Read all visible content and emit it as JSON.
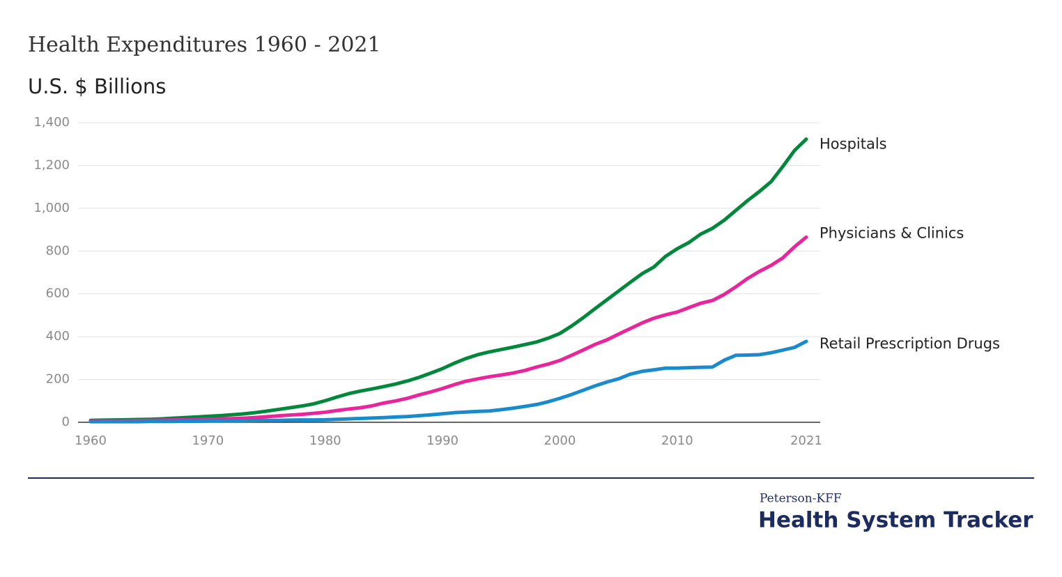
{
  "chart_data": {
    "type": "line",
    "title": "Health Expenditures 1960 - 2021",
    "subtitle": "U.S. $ Billions",
    "x": [
      1960,
      1961,
      1962,
      1963,
      1964,
      1965,
      1966,
      1967,
      1968,
      1969,
      1970,
      1971,
      1972,
      1973,
      1974,
      1975,
      1976,
      1977,
      1978,
      1979,
      1980,
      1981,
      1982,
      1983,
      1984,
      1985,
      1986,
      1987,
      1988,
      1989,
      1990,
      1991,
      1992,
      1993,
      1994,
      1995,
      1996,
      1997,
      1998,
      1999,
      2000,
      2001,
      2002,
      2003,
      2004,
      2005,
      2006,
      2007,
      2008,
      2009,
      2010,
      2011,
      2012,
      2013,
      2014,
      2015,
      2016,
      2017,
      2018,
      2019,
      2020,
      2021
    ],
    "xlim": [
      1960,
      2021
    ],
    "xticks": [
      1960,
      1970,
      1980,
      1990,
      2000,
      2010,
      2021
    ],
    "ylim": [
      0,
      1400
    ],
    "yticks": [
      0,
      200,
      400,
      600,
      800,
      {
        "value": 1000,
        "label": "1,000"
      },
      {
        "value": 1200,
        "label": "1,200"
      },
      {
        "value": 1400,
        "label": "1,400"
      }
    ],
    "grid": true,
    "series": [
      {
        "name": "Hospitals",
        "color": "#00873c",
        "values": [
          9,
          10,
          11,
          12,
          13,
          14,
          16,
          19,
          22,
          25,
          28,
          31,
          35,
          39,
          45,
          52,
          60,
          68,
          76,
          86,
          101,
          118,
          134,
          146,
          156,
          167,
          179,
          193,
          210,
          230,
          251,
          276,
          298,
          316,
          329,
          340,
          351,
          363,
          375,
          393,
          415,
          450,
          489,
          531,
          572,
          613,
          654,
          694,
          725,
          775,
          811,
          840,
          879,
          906,
          944,
          990,
          1036,
          1078,
          1124,
          1195,
          1270,
          1323
        ]
      },
      {
        "name": "Physicians & Clinics",
        "color": "#e8269c",
        "values": [
          5,
          6,
          6,
          7,
          8,
          9,
          10,
          11,
          12,
          13,
          14,
          16,
          17,
          19,
          22,
          26,
          30,
          34,
          37,
          42,
          47,
          55,
          62,
          68,
          77,
          90,
          100,
          112,
          128,
          142,
          158,
          176,
          192,
          203,
          213,
          221,
          230,
          242,
          258,
          272,
          289,
          313,
          338,
          364,
          385,
          412,
          438,
          464,
          486,
          502,
          515,
          536,
          556,
          569,
          597,
          633,
          672,
          705,
          733,
          768,
          820,
          865
        ]
      },
      {
        "name": "Retail Prescription Drugs",
        "color": "#1a8acb",
        "values": [
          3,
          3,
          3,
          3,
          3,
          4,
          4,
          4,
          5,
          5,
          6,
          6,
          7,
          7,
          8,
          9,
          9,
          10,
          11,
          11,
          12,
          14,
          16,
          18,
          20,
          22,
          25,
          27,
          31,
          35,
          40,
          45,
          48,
          51,
          53,
          59,
          66,
          74,
          83,
          96,
          112,
          130,
          150,
          170,
          188,
          203,
          225,
          238,
          245,
          253,
          253,
          255,
          257,
          258,
          290,
          313,
          314,
          316,
          325,
          337,
          350,
          378
        ]
      }
    ]
  },
  "footer": {
    "org": "Peterson-KFF",
    "tracker": "Health System Tracker"
  }
}
